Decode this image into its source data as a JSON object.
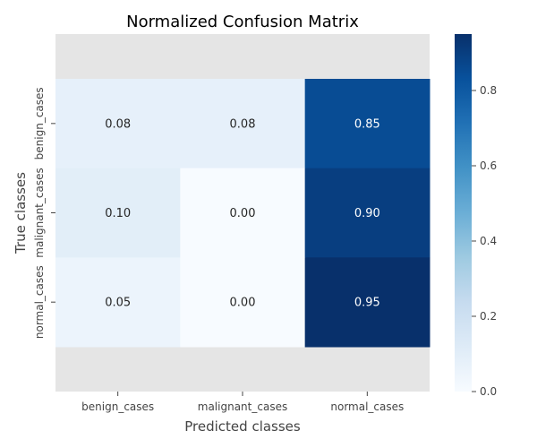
{
  "chart_data": {
    "type": "heatmap",
    "title": "Normalized Confusion Matrix",
    "xlabel": "Predicted classes",
    "ylabel": "True classes",
    "x_categories": [
      "benign_cases",
      "malignant_cases",
      "normal_cases"
    ],
    "y_categories": [
      "benign_cases",
      "malignant_cases",
      "normal_cases"
    ],
    "values": [
      [
        0.08,
        0.08,
        0.85
      ],
      [
        0.1,
        0.0,
        0.9
      ],
      [
        0.05,
        0.0,
        0.95
      ]
    ],
    "value_format": "0.00",
    "colormap": "Blues",
    "colorbar": {
      "range": [
        0.0,
        0.95
      ],
      "ticks": [
        0.0,
        0.2,
        0.4,
        0.6,
        0.8
      ],
      "tick_labels": [
        "0.0",
        "0.2",
        "0.4",
        "0.6",
        "0.8"
      ]
    },
    "background_color": "#e5e5e5",
    "grid": false
  }
}
